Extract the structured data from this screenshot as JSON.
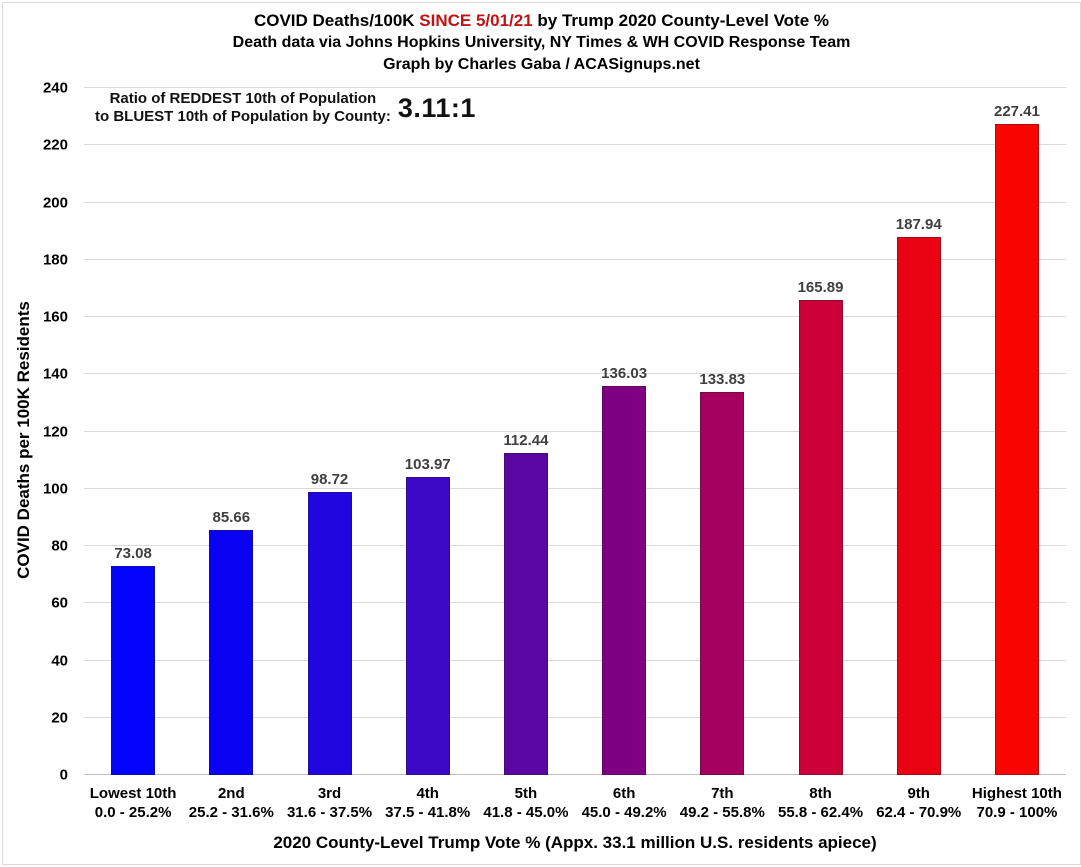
{
  "header": {
    "title_part1": "COVID Deaths/100K ",
    "title_highlight": "SINCE 5/01/21",
    "title_part2": " by Trump 2020 County-Level Vote %",
    "title_highlight_color": "#C01414",
    "subtitle1": "Death data via Johns Hopkins University, NY Times & WH COVID Response Team",
    "subtitle2": "Graph by Charles Gaba / ACASignups.net"
  },
  "annotation": {
    "line1": "Ratio of REDDEST 10th of Population",
    "line2": "to BLUEST 10th of Population by County:",
    "ratio": "3.11:1"
  },
  "chart_data": {
    "type": "bar",
    "title": "COVID Deaths/100K SINCE 5/01/21 by Trump 2020 County-Level Vote %",
    "categories": [
      "Lowest 10th",
      "2nd",
      "3rd",
      "4th",
      "5th",
      "6th",
      "7th",
      "8th",
      "9th",
      "Highest 10th"
    ],
    "category_sublabels": [
      "0.0 - 25.2%",
      "25.2 - 31.6%",
      "31.6 - 37.5%",
      "37.5 - 41.8%",
      "41.8 - 45.0%",
      "45.0 - 49.2%",
      "49.2 - 55.8%",
      "55.8 - 62.4%",
      "62.4 - 70.9%",
      "70.9 - 100%"
    ],
    "values": [
      73.08,
      85.66,
      98.72,
      103.97,
      112.44,
      136.03,
      133.83,
      165.89,
      187.94,
      227.41
    ],
    "value_labels": [
      "73.08",
      "85.66",
      "98.72",
      "103.97",
      "112.44",
      "136.03",
      "133.83",
      "165.89",
      "187.94",
      "227.41"
    ],
    "bar_colors": [
      "#0303FB",
      "#0A02F3",
      "#2206E0",
      "#3D08C6",
      "#5906A3",
      "#7F0181",
      "#A50260",
      "#CD0139",
      "#E90313",
      "#FA0400"
    ],
    "xlabel": "2020 County-Level Trump Vote % (Appx. 33.1 million U.S. residents apiece)",
    "ylabel": "COVID Deaths per 100K Residents",
    "ylim": [
      0,
      240
    ],
    "ytick_step": 20,
    "grid": true,
    "gridline_color": "#D9D9D9",
    "legend": "none"
  }
}
